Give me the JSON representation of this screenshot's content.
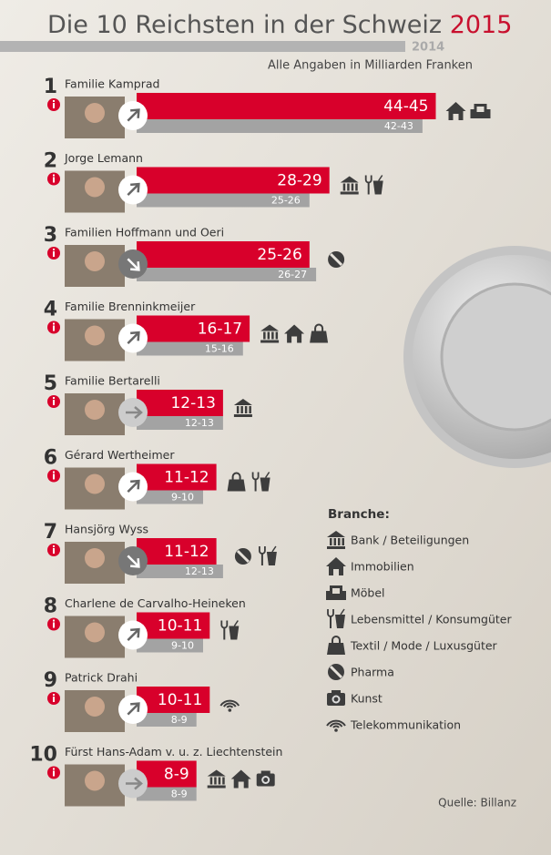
{
  "chart_data": {
    "type": "bar",
    "title": "Die 10 Reichsten in der Schweiz",
    "subtitle": "Alle Angaben in Milliarden Franken",
    "ranks": [
      1,
      2,
      3,
      4,
      5,
      6,
      7,
      8,
      9,
      10
    ],
    "categories": [
      "Familie Kamprad",
      "Jorge Lemann",
      "Familien Hoffmann und Oeri",
      "Familie Brenninkmeijer",
      "Familie Bertarelli",
      "Gérard Wertheimer",
      "Hansjörg Wyss",
      "Charlene de Carvalho-Heineken",
      "Patrick Drahi",
      "Fürst Hans-Adam v. u. z. Liechtenstein"
    ],
    "series": [
      {
        "name": "2015",
        "color": "#d8002b",
        "values": [
          45,
          29,
          26,
          17,
          13,
          12,
          12,
          11,
          11,
          9
        ],
        "value_labels": [
          "44-45",
          "28-29",
          "25-26",
          "16-17",
          "12-13",
          "11-12",
          "11-12",
          "10-11",
          "10-11",
          "8-9"
        ]
      },
      {
        "name": "2014",
        "color": "#a3a3a3",
        "values": [
          43,
          26,
          27,
          16,
          13,
          10,
          13,
          10,
          9,
          9
        ],
        "value_labels": [
          "42-43",
          "25-26",
          "26-27",
          "15-16",
          "12-13",
          "9-10",
          "12-13",
          "9-10",
          "8-9",
          "8-9"
        ]
      }
    ],
    "trends": [
      "up",
      "up",
      "down",
      "up",
      "right",
      "up",
      "down",
      "up",
      "up",
      "right"
    ],
    "sectors": [
      [
        "immo",
        "moebel"
      ],
      [
        "bank",
        "lebensmittel"
      ],
      [
        "pharma"
      ],
      [
        "bank",
        "immo",
        "textil"
      ],
      [
        "bank"
      ],
      [
        "textil",
        "lebensmittel"
      ],
      [
        "pharma",
        "lebensmittel"
      ],
      [
        "lebensmittel"
      ],
      [
        "telekom"
      ],
      [
        "bank",
        "immo",
        "kunst"
      ]
    ],
    "legend_title": "Branche:",
    "legend": [
      {
        "key": "bank",
        "label": "Bank / Beteiligungen"
      },
      {
        "key": "immo",
        "label": "Immobilien"
      },
      {
        "key": "moebel",
        "label": "Möbel"
      },
      {
        "key": "lebensmittel",
        "label": "Lebensmittel / Konsumgüter"
      },
      {
        "key": "textil",
        "label": "Textil / Mode / Luxusgüter"
      },
      {
        "key": "pharma",
        "label": "Pharma"
      },
      {
        "key": "kunst",
        "label": "Kunst"
      },
      {
        "key": "telekom",
        "label": "Telekommunikation"
      }
    ],
    "source": "Quelle: Billanz"
  }
}
